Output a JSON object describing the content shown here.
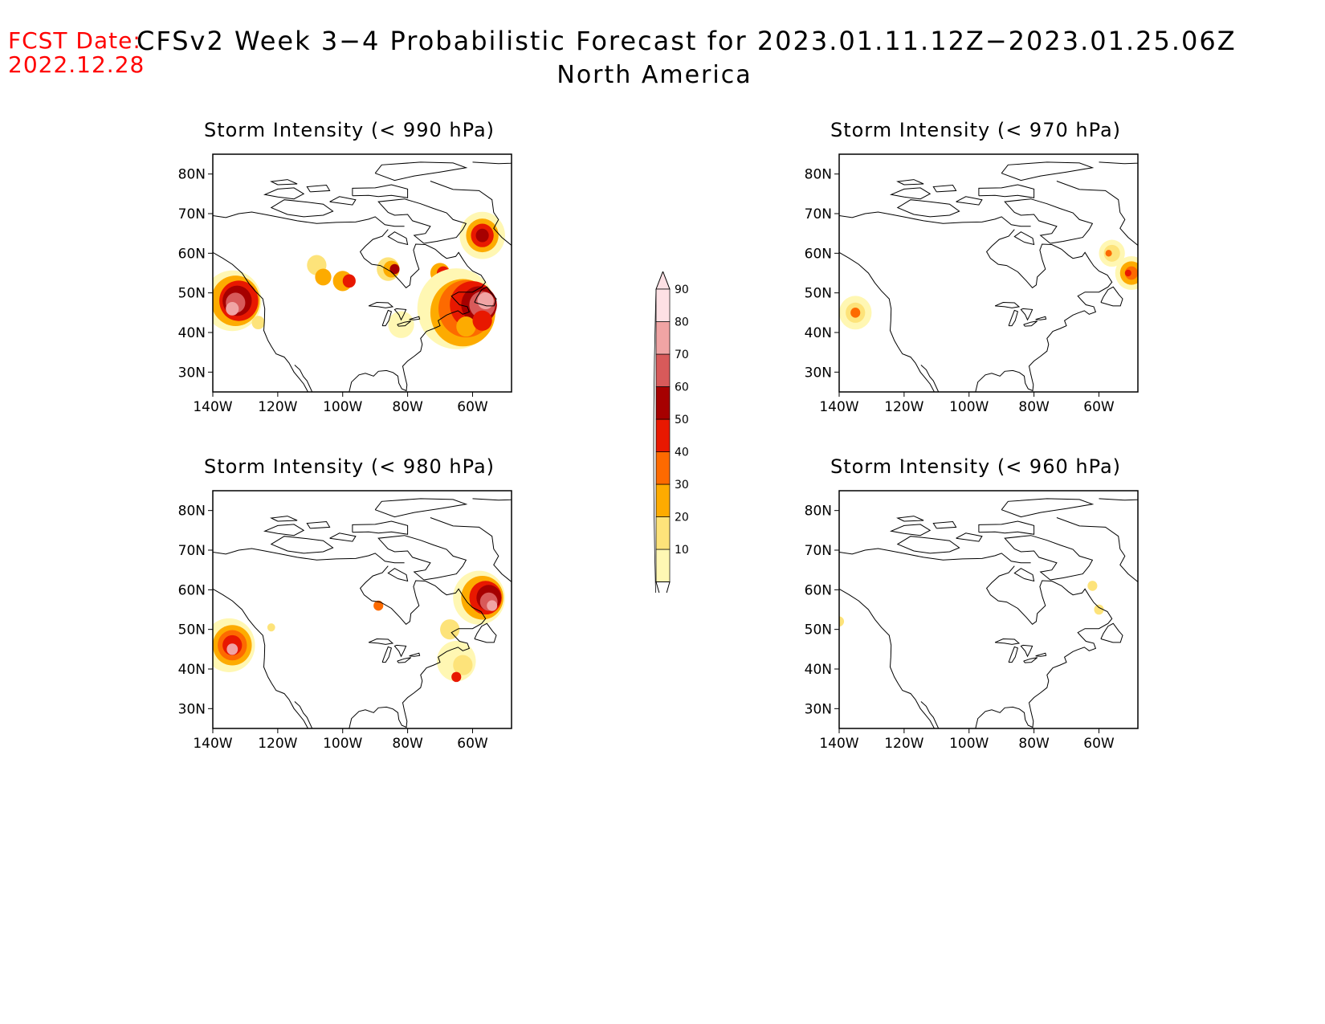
{
  "header": {
    "fcst_date_label": "FCST Date:",
    "fcst_date": "2022.12.28",
    "title": "CFSv2 Week 3−4 Probabilistic Forecast for 2023.01.11.12Z−2023.01.25.06Z",
    "region": "North America"
  },
  "axes": {
    "lat_labels": [
      "80N",
      "70N",
      "60N",
      "50N",
      "40N",
      "30N"
    ],
    "lon_labels": [
      "140W",
      "120W",
      "100W",
      "80W",
      "60W"
    ]
  },
  "panels": [
    {
      "title": "Storm Intensity (< 990 hPa)"
    },
    {
      "title": "Storm Intensity (< 970 hPa)"
    },
    {
      "title": "Storm Intensity (< 980 hPa)"
    },
    {
      "title": "Storm Intensity (< 960 hPa)"
    }
  ],
  "colorbar": {
    "levels": [
      "10",
      "20",
      "30",
      "40",
      "50",
      "60",
      "70",
      "80",
      "90"
    ],
    "colors": [
      "#fff7b3",
      "#fde37a",
      "#fdab00",
      "#fd6a00",
      "#e81800",
      "#a60000",
      "#d85a5a",
      "#f0a4a4",
      "#fde0e4"
    ]
  }
}
